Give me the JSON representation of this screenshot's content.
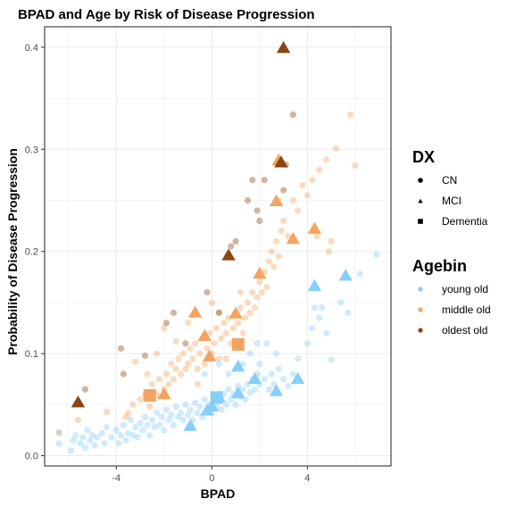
{
  "chart_data": {
    "type": "scatter",
    "title": "BPAD and Age by Risk of Disease Progression",
    "xlabel": "BPAD",
    "ylabel": "Probability of Disease Progression",
    "xlim": [
      -7.0,
      7.5
    ],
    "ylim": [
      -0.01,
      0.42
    ],
    "xticks": [
      -4,
      0,
      4
    ],
    "yticks": [
      0.0,
      0.1,
      0.2,
      0.3,
      0.4
    ],
    "xtick_labels": [
      "-4",
      "0",
      "4"
    ],
    "ytick_labels": [
      "0.0",
      "0.1",
      "0.2",
      "0.3",
      "0.4"
    ],
    "grid": true,
    "legend_position": "right",
    "legends": [
      {
        "title": "DX",
        "items": [
          {
            "label": "CN",
            "shape": "circle"
          },
          {
            "label": "MCI",
            "shape": "triangle"
          },
          {
            "label": "Dementia",
            "shape": "square"
          }
        ]
      },
      {
        "title": "Agebin",
        "items": [
          {
            "label": "young old",
            "color": "#87CEFA"
          },
          {
            "label": "middle old",
            "color": "#F4A460"
          },
          {
            "label": "oldest old",
            "color": "#8B4513"
          }
        ]
      }
    ],
    "series": [
      {
        "dx": "CN",
        "agebin": "young old",
        "points": [
          [
            -6.4,
            0.012
          ],
          [
            -6.4,
            0.022
          ],
          [
            -5.9,
            0.005
          ],
          [
            -5.8,
            0.015
          ],
          [
            -5.7,
            0.02
          ],
          [
            -5.5,
            0.012
          ],
          [
            -5.4,
            0.018
          ],
          [
            -5.3,
            0.008
          ],
          [
            -5.2,
            0.025
          ],
          [
            -5.1,
            0.015
          ],
          [
            -5.0,
            0.02
          ],
          [
            -4.9,
            0.01
          ],
          [
            -4.8,
            0.018
          ],
          [
            -4.6,
            0.022
          ],
          [
            -4.5,
            0.012
          ],
          [
            -4.4,
            0.028
          ],
          [
            -4.2,
            0.018
          ],
          [
            -4.0,
            0.025
          ],
          [
            -3.9,
            0.012
          ],
          [
            -3.8,
            0.02
          ],
          [
            -3.7,
            0.03
          ],
          [
            -3.6,
            0.015
          ],
          [
            -3.5,
            0.022
          ],
          [
            -3.4,
            0.035
          ],
          [
            -3.3,
            0.02
          ],
          [
            -3.2,
            0.028
          ],
          [
            -3.1,
            0.018
          ],
          [
            -3.0,
            0.032
          ],
          [
            -2.9,
            0.025
          ],
          [
            -2.8,
            0.038
          ],
          [
            -2.7,
            0.03
          ],
          [
            -2.6,
            0.02
          ],
          [
            -2.5,
            0.035
          ],
          [
            -2.4,
            0.028
          ],
          [
            -2.3,
            0.042
          ],
          [
            -2.2,
            0.03
          ],
          [
            -2.1,
            0.038
          ],
          [
            -2.0,
            0.025
          ],
          [
            -1.9,
            0.045
          ],
          [
            -1.8,
            0.035
          ],
          [
            -1.7,
            0.04
          ],
          [
            -1.6,
            0.03
          ],
          [
            -1.5,
            0.048
          ],
          [
            -1.4,
            0.038
          ],
          [
            -1.3,
            0.042
          ],
          [
            -1.2,
            0.035
          ],
          [
            -1.1,
            0.05
          ],
          [
            -1.0,
            0.04
          ],
          [
            -0.9,
            0.045
          ],
          [
            -0.8,
            0.035
          ],
          [
            -0.7,
            0.052
          ],
          [
            -0.6,
            0.042
          ],
          [
            -0.5,
            0.048
          ],
          [
            -0.4,
            0.038
          ],
          [
            -0.3,
            0.055
          ],
          [
            -0.2,
            0.045
          ],
          [
            -0.1,
            0.05
          ],
          [
            0.0,
            0.042
          ],
          [
            0.1,
            0.058
          ],
          [
            0.2,
            0.048
          ],
          [
            0.3,
            0.055
          ],
          [
            0.4,
            0.045
          ],
          [
            0.5,
            0.06
          ],
          [
            0.6,
            0.05
          ],
          [
            0.7,
            0.065
          ],
          [
            0.8,
            0.055
          ],
          [
            0.9,
            0.06
          ],
          [
            1.0,
            0.05
          ],
          [
            1.1,
            0.068
          ],
          [
            1.2,
            0.058
          ],
          [
            1.3,
            0.065
          ],
          [
            1.4,
            0.055
          ],
          [
            1.5,
            0.07
          ],
          [
            1.6,
            0.062
          ],
          [
            1.7,
            0.075
          ],
          [
            1.8,
            0.065
          ],
          [
            1.9,
            0.08
          ],
          [
            2.0,
            0.07
          ],
          [
            2.2,
            0.075
          ],
          [
            2.4,
            0.065
          ],
          [
            2.5,
            0.08
          ],
          [
            2.6,
            0.07
          ],
          [
            2.8,
            0.085
          ],
          [
            3.0,
            0.075
          ],
          [
            3.2,
            0.068
          ],
          [
            3.4,
            0.08
          ],
          [
            1.0,
            0.085
          ],
          [
            1.3,
            0.09
          ],
          [
            0.7,
            0.08
          ],
          [
            2.0,
            0.09
          ],
          [
            2.3,
            0.11
          ],
          [
            1.6,
            0.1
          ],
          [
            3.6,
            0.095
          ],
          [
            4.0,
            0.11
          ],
          [
            4.2,
            0.125
          ],
          [
            4.5,
            0.135
          ],
          [
            4.6,
            0.145
          ],
          [
            4.8,
            0.12
          ],
          [
            5.0,
            0.094
          ],
          [
            5.4,
            0.15
          ],
          [
            5.7,
            0.14
          ],
          [
            6.2,
            0.178
          ],
          [
            6.9,
            0.197
          ],
          [
            4.3,
            0.145
          ],
          [
            0.3,
            0.09
          ],
          [
            -0.3,
            0.08
          ],
          [
            1.9,
            0.11
          ],
          [
            2.7,
            0.1
          ]
        ]
      },
      {
        "dx": "CN",
        "agebin": "middle old",
        "points": [
          [
            -6.4,
            0.023
          ],
          [
            -5.6,
            0.035
          ],
          [
            -3.5,
            0.042
          ],
          [
            -3.3,
            0.05
          ],
          [
            -3.0,
            0.055
          ],
          [
            -2.8,
            0.06
          ],
          [
            -2.6,
            0.048
          ],
          [
            -2.5,
            0.07
          ],
          [
            -2.3,
            0.06
          ],
          [
            -2.2,
            0.075
          ],
          [
            -2.0,
            0.065
          ],
          [
            -1.9,
            0.08
          ],
          [
            -1.8,
            0.07
          ],
          [
            -1.7,
            0.09
          ],
          [
            -1.6,
            0.075
          ],
          [
            -1.5,
            0.085
          ],
          [
            -1.4,
            0.095
          ],
          [
            -1.3,
            0.08
          ],
          [
            -1.2,
            0.1
          ],
          [
            -1.1,
            0.085
          ],
          [
            -1.0,
            0.09
          ],
          [
            -0.9,
            0.105
          ],
          [
            -0.8,
            0.095
          ],
          [
            -0.7,
            0.11
          ],
          [
            -0.6,
            0.085
          ],
          [
            -0.5,
            0.1
          ],
          [
            -0.4,
            0.115
          ],
          [
            -0.3,
            0.09
          ],
          [
            -0.2,
            0.105
          ],
          [
            -0.1,
            0.12
          ],
          [
            0.0,
            0.1
          ],
          [
            0.1,
            0.11
          ],
          [
            0.2,
            0.125
          ],
          [
            0.3,
            0.095
          ],
          [
            0.4,
            0.115
          ],
          [
            0.5,
            0.13
          ],
          [
            0.6,
            0.12
          ],
          [
            0.7,
            0.135
          ],
          [
            0.8,
            0.11
          ],
          [
            0.9,
            0.125
          ],
          [
            1.0,
            0.14
          ],
          [
            1.1,
            0.13
          ],
          [
            1.2,
            0.145
          ],
          [
            1.3,
            0.12
          ],
          [
            1.4,
            0.135
          ],
          [
            1.5,
            0.15
          ],
          [
            1.6,
            0.14
          ],
          [
            1.7,
            0.16
          ],
          [
            1.8,
            0.145
          ],
          [
            1.9,
            0.155
          ],
          [
            2.0,
            0.17
          ],
          [
            2.1,
            0.16
          ],
          [
            2.2,
            0.18
          ],
          [
            2.3,
            0.165
          ],
          [
            2.4,
            0.19
          ],
          [
            2.5,
            0.2
          ],
          [
            2.6,
            0.185
          ],
          [
            2.7,
            0.21
          ],
          [
            2.8,
            0.195
          ],
          [
            2.9,
            0.22
          ],
          [
            3.0,
            0.23
          ],
          [
            3.2,
            0.215
          ],
          [
            3.4,
            0.25
          ],
          [
            3.6,
            0.24
          ],
          [
            3.8,
            0.265
          ],
          [
            4.0,
            0.255
          ],
          [
            4.2,
            0.27
          ],
          [
            4.5,
            0.28
          ],
          [
            4.8,
            0.29
          ],
          [
            4.9,
            0.2
          ],
          [
            5.0,
            0.21
          ],
          [
            5.2,
            0.301
          ],
          [
            6.0,
            0.284
          ],
          [
            5.8,
            0.334
          ],
          [
            -2.0,
            0.125
          ],
          [
            -1.0,
            0.13
          ],
          [
            0.0,
            0.15
          ],
          [
            0.3,
            0.14
          ],
          [
            -3.2,
            0.092
          ],
          [
            -2.7,
            0.08
          ],
          [
            -4.4,
            0.043
          ],
          [
            -3.6,
            0.038
          ],
          [
            -1.5,
            0.112
          ],
          [
            1.2,
            0.16
          ],
          [
            2.8,
            0.25
          ],
          [
            4.4,
            0.215
          ],
          [
            -0.6,
            0.07
          ],
          [
            0.6,
            0.095
          ],
          [
            -2.3,
            0.1
          ]
        ]
      },
      {
        "dx": "CN",
        "agebin": "oldest old",
        "points": [
          [
            -5.3,
            0.065
          ],
          [
            -3.8,
            0.105
          ],
          [
            -3.7,
            0.08
          ],
          [
            -2.8,
            0.098
          ],
          [
            -1.9,
            0.13
          ],
          [
            -1.6,
            0.14
          ],
          [
            -0.2,
            0.16
          ],
          [
            0.8,
            0.205
          ],
          [
            1.0,
            0.21
          ],
          [
            1.5,
            0.25
          ],
          [
            1.7,
            0.27
          ],
          [
            1.9,
            0.24
          ],
          [
            2.0,
            0.23
          ],
          [
            2.2,
            0.27
          ],
          [
            3.0,
            0.26
          ],
          [
            3.1,
            0.285
          ],
          [
            3.4,
            0.334
          ],
          [
            -1.1,
            0.11
          ],
          [
            0.3,
            0.14
          ]
        ]
      },
      {
        "dx": "MCI",
        "agebin": "young old",
        "points": [
          [
            -0.9,
            0.029
          ],
          [
            -0.2,
            0.044
          ],
          [
            0.0,
            0.048
          ],
          [
            0.3,
            0.057
          ],
          [
            1.1,
            0.061
          ],
          [
            1.1,
            0.087
          ],
          [
            1.8,
            0.075
          ],
          [
            2.7,
            0.063
          ],
          [
            3.6,
            0.075
          ],
          [
            4.3,
            0.166
          ],
          [
            5.6,
            0.176
          ]
        ]
      },
      {
        "dx": "MCI",
        "agebin": "middle old",
        "points": [
          [
            -2.0,
            0.06
          ],
          [
            -0.7,
            0.14
          ],
          [
            -0.3,
            0.117
          ],
          [
            -0.1,
            0.097
          ],
          [
            1.0,
            0.139
          ],
          [
            2.0,
            0.178
          ],
          [
            2.7,
            0.249
          ],
          [
            2.8,
            0.289
          ],
          [
            3.4,
            0.212
          ],
          [
            4.3,
            0.222
          ]
        ]
      },
      {
        "dx": "MCI",
        "agebin": "oldest old",
        "points": [
          [
            -5.6,
            0.052
          ],
          [
            0.7,
            0.196
          ],
          [
            2.9,
            0.287
          ],
          [
            3.0,
            0.399
          ]
        ]
      },
      {
        "dx": "Dementia",
        "agebin": "young old",
        "points": [
          [
            0.2,
            0.057
          ]
        ]
      },
      {
        "dx": "Dementia",
        "agebin": "middle old",
        "points": [
          [
            -2.6,
            0.059
          ],
          [
            1.1,
            0.109
          ]
        ]
      }
    ],
    "colors": {
      "young old": "#87CEFA",
      "middle old": "#F4A460",
      "oldest old": "#8B4513",
      "panel_border": "#333333",
      "grid": "#ebebeb",
      "tick": "#333333"
    }
  }
}
